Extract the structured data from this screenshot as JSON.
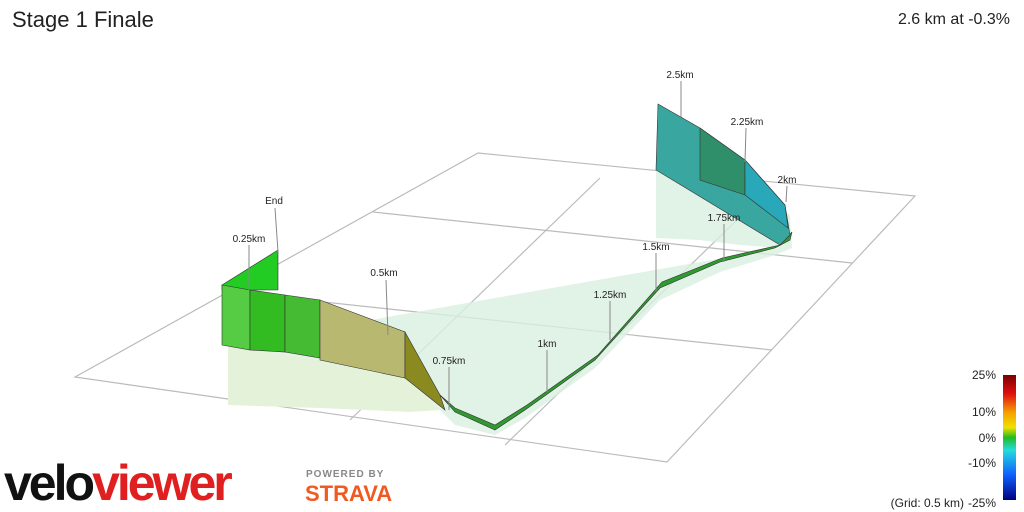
{
  "header": {
    "title": "Stage 1 Finale",
    "summary": "2.6 km at -0.3%"
  },
  "markers": [
    {
      "label": "End"
    },
    {
      "label": "0.25km"
    },
    {
      "label": "0.5km"
    },
    {
      "label": "0.75km"
    },
    {
      "label": "1km"
    },
    {
      "label": "1.25km"
    },
    {
      "label": "1.5km"
    },
    {
      "label": "1.75km"
    },
    {
      "label": "2km"
    },
    {
      "label": "2.25km"
    },
    {
      "label": "2.5km"
    }
  ],
  "legend": {
    "ticks": [
      "25%",
      "10%",
      "0%",
      "-10%",
      "-25%"
    ],
    "grid_note": "(Grid: 0.5 km)"
  },
  "branding": {
    "logo_first": "velo",
    "logo_second": "viewer",
    "powered_by": "POWERED BY",
    "partner": "STRAVA"
  }
}
